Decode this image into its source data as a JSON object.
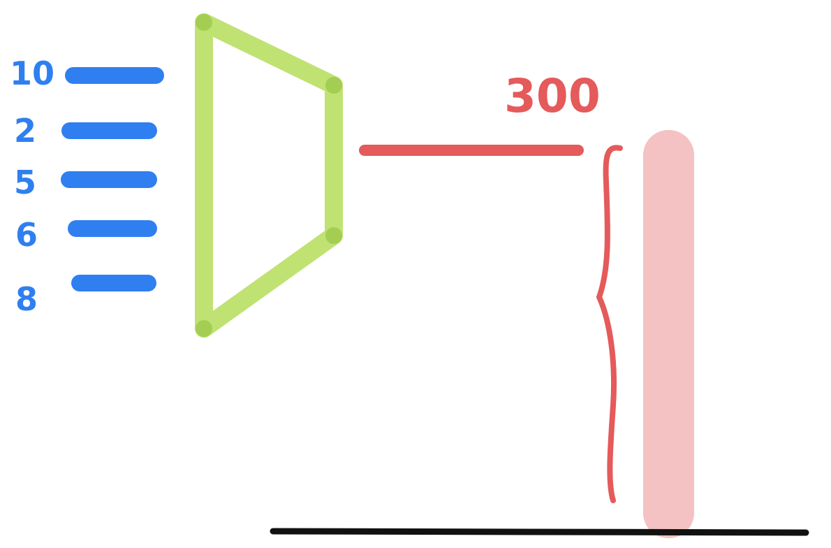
{
  "inputs": [
    {
      "label": "10"
    },
    {
      "label": "2"
    },
    {
      "label": "5"
    },
    {
      "label": "6"
    },
    {
      "label": "8"
    }
  ],
  "output": {
    "label": "300"
  },
  "colors": {
    "input_stroke": "#2f7ff0",
    "encoder_stroke": "#b5dd5b",
    "encoder_joint": "#9cc94a",
    "output_stroke": "#e55a5a",
    "output_bar": "#f4c2c2",
    "baseline": "#111111"
  }
}
